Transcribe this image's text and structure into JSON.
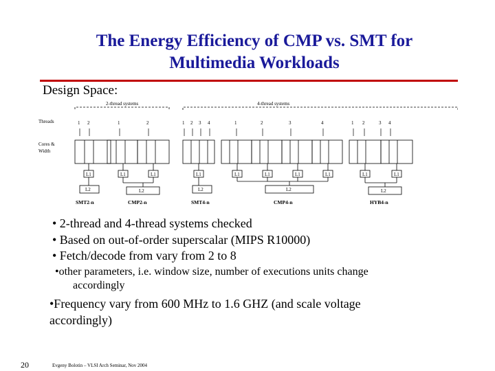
{
  "title_line1": "The Energy Efficiency of CMP vs. SMT for",
  "title_line2": "Multimedia Workloads",
  "section_label": "Design Space:",
  "diagram": {
    "group_2thread": "2-thread systems",
    "group_4thread": "4-thread systems",
    "row_threads": "Threads",
    "row_cores_1": "Cores &",
    "row_cores_2": "Width",
    "l1": "L1",
    "l2": "L2",
    "config_smt2": "SMT2-n",
    "config_cmp2": "CMP2-n",
    "config_smt4": "SMT4-n",
    "config_cmp4": "CMP4-n",
    "config_hyb4": "HYB4-n"
  },
  "bullets": [
    "• 2-thread and 4-thread systems checked",
    "• Based on out-of-order superscalar (MIPS R10000)",
    "• Fetch/decode from vary from 2 to 8"
  ],
  "sub_bullet_line1": "•other parameters,  i.e. window size, number of executions units change",
  "sub_bullet_line2": "accordingly",
  "freq_line1": "•Frequency vary from 600 MHz to 1.6 GHZ (and scale voltage",
  "freq_line2": "accordingly)",
  "page_number": "20",
  "footer": "Evgeny Bolotin – VLSI Arch Seminar, Nov 2004",
  "colors": {
    "title": "#1a1a9a",
    "rule": "#c00000"
  }
}
